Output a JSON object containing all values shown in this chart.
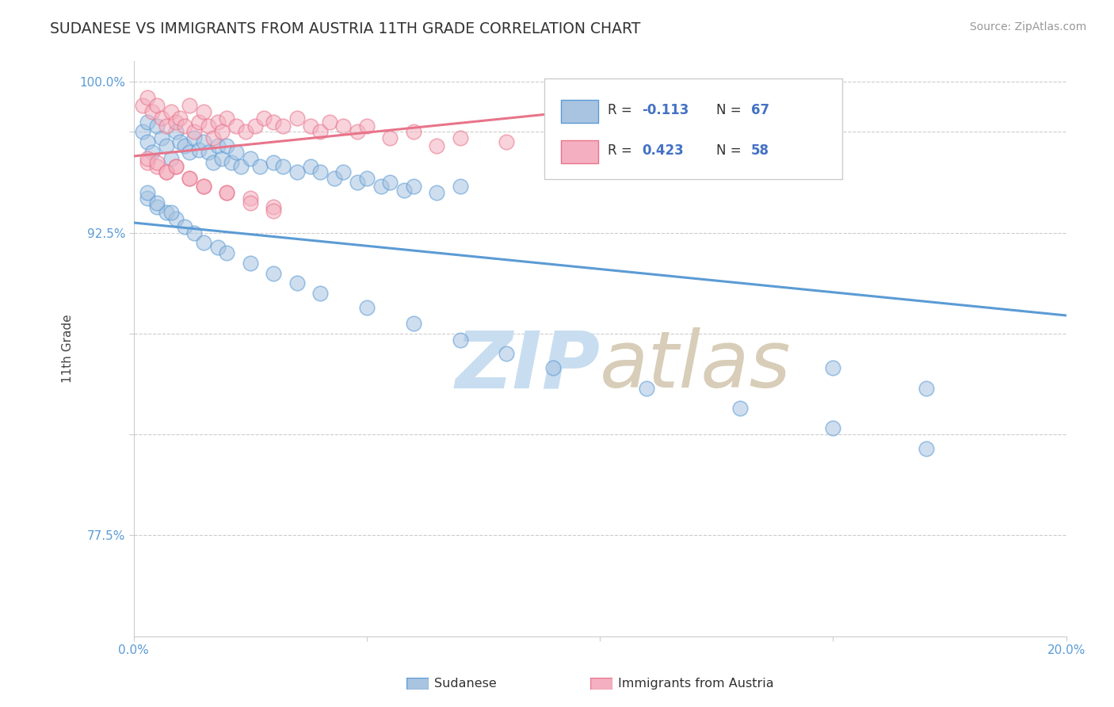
{
  "title": "SUDANESE VS IMMIGRANTS FROM AUSTRIA 11TH GRADE CORRELATION CHART",
  "source_text": "Source: ZipAtlas.com",
  "ylabel": "11th Grade",
  "x_min": 0.0,
  "x_max": 0.2,
  "y_min": 0.725,
  "y_max": 1.01,
  "x_ticks": [
    0.0,
    0.05,
    0.1,
    0.15,
    0.2
  ],
  "y_ticks": [
    0.775,
    0.825,
    0.875,
    0.925,
    0.975,
    1.0
  ],
  "blue_r": -0.113,
  "blue_n": 67,
  "pink_r": 0.423,
  "pink_n": 58,
  "blue_color": "#5b9bd5",
  "pink_color": "#e8748a",
  "blue_fill": "#a8c4e0",
  "pink_fill": "#f4b0c0",
  "sudanese_line_x": [
    0.0,
    0.2
  ],
  "sudanese_line_y": [
    0.93,
    0.884
  ],
  "austria_line_x": [
    0.0,
    0.145
  ],
  "austria_line_y": [
    0.963,
    0.997
  ],
  "sudanese_scatter_x": [
    0.002,
    0.003,
    0.003,
    0.004,
    0.005,
    0.006,
    0.007,
    0.008,
    0.009,
    0.01,
    0.011,
    0.012,
    0.013,
    0.014,
    0.015,
    0.016,
    0.017,
    0.018,
    0.019,
    0.02,
    0.021,
    0.022,
    0.023,
    0.025,
    0.027,
    0.03,
    0.032,
    0.035,
    0.038,
    0.04,
    0.043,
    0.045,
    0.048,
    0.05,
    0.053,
    0.055,
    0.058,
    0.06,
    0.065,
    0.07,
    0.003,
    0.005,
    0.007,
    0.009,
    0.011,
    0.013,
    0.015,
    0.018,
    0.02,
    0.025,
    0.03,
    0.035,
    0.04,
    0.05,
    0.06,
    0.07,
    0.08,
    0.09,
    0.11,
    0.13,
    0.15,
    0.17,
    0.003,
    0.005,
    0.008,
    0.15,
    0.17
  ],
  "sudanese_scatter_y": [
    0.975,
    0.98,
    0.97,
    0.965,
    0.978,
    0.972,
    0.968,
    0.962,
    0.975,
    0.97,
    0.968,
    0.965,
    0.972,
    0.966,
    0.97,
    0.965,
    0.96,
    0.968,
    0.962,
    0.968,
    0.96,
    0.965,
    0.958,
    0.962,
    0.958,
    0.96,
    0.958,
    0.955,
    0.958,
    0.955,
    0.952,
    0.955,
    0.95,
    0.952,
    0.948,
    0.95,
    0.946,
    0.948,
    0.945,
    0.948,
    0.942,
    0.938,
    0.935,
    0.932,
    0.928,
    0.925,
    0.92,
    0.918,
    0.915,
    0.91,
    0.905,
    0.9,
    0.895,
    0.888,
    0.88,
    0.872,
    0.865,
    0.858,
    0.848,
    0.838,
    0.828,
    0.818,
    0.945,
    0.94,
    0.935,
    0.858,
    0.848
  ],
  "austria_scatter_x": [
    0.002,
    0.003,
    0.004,
    0.005,
    0.006,
    0.007,
    0.008,
    0.009,
    0.01,
    0.011,
    0.012,
    0.013,
    0.014,
    0.015,
    0.016,
    0.017,
    0.018,
    0.019,
    0.02,
    0.022,
    0.024,
    0.026,
    0.028,
    0.03,
    0.032,
    0.035,
    0.038,
    0.04,
    0.042,
    0.045,
    0.048,
    0.05,
    0.055,
    0.06,
    0.065,
    0.07,
    0.08,
    0.09,
    0.1,
    0.13,
    0.003,
    0.005,
    0.007,
    0.009,
    0.012,
    0.015,
    0.02,
    0.025,
    0.03,
    0.003,
    0.005,
    0.007,
    0.009,
    0.012,
    0.015,
    0.02,
    0.025,
    0.03
  ],
  "austria_scatter_y": [
    0.988,
    0.992,
    0.985,
    0.988,
    0.982,
    0.978,
    0.985,
    0.98,
    0.982,
    0.978,
    0.988,
    0.975,
    0.98,
    0.985,
    0.978,
    0.972,
    0.98,
    0.975,
    0.982,
    0.978,
    0.975,
    0.978,
    0.982,
    0.98,
    0.978,
    0.982,
    0.978,
    0.975,
    0.98,
    0.978,
    0.975,
    0.978,
    0.972,
    0.975,
    0.968,
    0.972,
    0.97,
    0.972,
    0.968,
    0.965,
    0.96,
    0.958,
    0.955,
    0.958,
    0.952,
    0.948,
    0.945,
    0.942,
    0.938,
    0.962,
    0.96,
    0.955,
    0.958,
    0.952,
    0.948,
    0.945,
    0.94,
    0.936
  ],
  "background_color": "#ffffff"
}
